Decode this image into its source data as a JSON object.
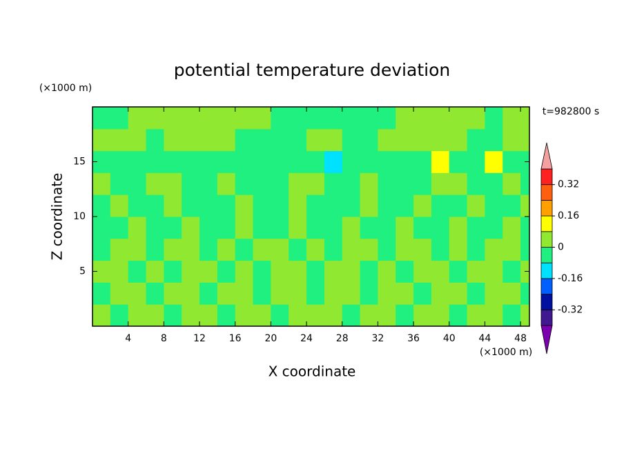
{
  "chart_data": {
    "type": "contour",
    "title": "potential temperature deviation",
    "x_label": "X coordinate",
    "y_label": "Z coordinate",
    "x_unit": "(×1000 m)",
    "y_unit": "(×1000 m)",
    "time_label": "t=982800 s",
    "xlim": [
      0,
      49
    ],
    "ylim": [
      0,
      20
    ],
    "xticks": [
      4,
      8,
      12,
      16,
      20,
      24,
      28,
      32,
      36,
      40,
      44,
      48
    ],
    "yticks": [
      5,
      10,
      15
    ],
    "x": [
      1,
      3,
      5,
      7,
      9,
      11,
      13,
      15,
      17,
      19,
      21,
      23,
      25,
      27,
      29,
      31,
      33,
      35,
      37,
      39,
      41,
      43,
      45,
      47,
      49
    ],
    "y": [
      1,
      3,
      5,
      7,
      9,
      11,
      13,
      15,
      17,
      19
    ],
    "z": [
      [
        0.04,
        -0.04,
        0.04,
        0.04,
        -0.04,
        0.04,
        0.04,
        -0.04,
        0.04,
        0.04,
        -0.04,
        0.04,
        0.04,
        0.04,
        -0.04,
        0.04,
        0.04,
        -0.04,
        0.04,
        0.04,
        -0.04,
        0.04,
        0.04,
        -0.04,
        0.04
      ],
      [
        -0.04,
        0.04,
        0.04,
        -0.04,
        0.04,
        0.04,
        -0.04,
        0.04,
        0.04,
        -0.04,
        0.04,
        0.04,
        -0.04,
        0.04,
        0.04,
        -0.04,
        0.04,
        0.04,
        -0.04,
        0.04,
        0.04,
        -0.04,
        0.04,
        0.04,
        -0.04
      ],
      [
        0.04,
        0.04,
        -0.04,
        0.04,
        -0.04,
        0.04,
        0.04,
        -0.04,
        0.04,
        -0.04,
        0.04,
        0.04,
        -0.04,
        0.04,
        0.04,
        -0.04,
        0.04,
        -0.04,
        0.04,
        0.04,
        -0.04,
        0.04,
        0.04,
        -0.04,
        0.04
      ],
      [
        -0.04,
        0.04,
        0.04,
        -0.04,
        0.04,
        0.04,
        -0.04,
        0.04,
        -0.04,
        0.04,
        0.04,
        -0.04,
        0.04,
        -0.04,
        0.04,
        0.04,
        -0.04,
        0.04,
        0.04,
        -0.04,
        0.04,
        -0.04,
        0.04,
        0.04,
        -0.04
      ],
      [
        -0.04,
        -0.04,
        0.04,
        -0.04,
        -0.04,
        0.04,
        -0.04,
        -0.04,
        0.04,
        -0.04,
        -0.04,
        0.04,
        -0.04,
        -0.04,
        0.04,
        -0.04,
        -0.04,
        0.04,
        -0.04,
        -0.04,
        0.04,
        -0.04,
        -0.04,
        0.04,
        -0.04
      ],
      [
        -0.04,
        0.04,
        -0.04,
        -0.04,
        0.04,
        -0.04,
        -0.04,
        -0.04,
        0.04,
        -0.04,
        -0.04,
        0.04,
        -0.04,
        -0.04,
        -0.04,
        0.04,
        -0.04,
        -0.04,
        0.04,
        -0.04,
        -0.04,
        0.04,
        -0.04,
        -0.04,
        0.04
      ],
      [
        0.04,
        -0.04,
        -0.04,
        0.04,
        0.04,
        -0.04,
        -0.04,
        0.04,
        -0.04,
        -0.04,
        -0.04,
        0.04,
        0.04,
        -0.04,
        -0.04,
        0.04,
        -0.04,
        -0.04,
        -0.04,
        0.04,
        0.04,
        -0.04,
        -0.04,
        0.04,
        -0.04
      ],
      [
        -0.04,
        -0.04,
        -0.04,
        -0.04,
        -0.04,
        -0.04,
        -0.04,
        -0.04,
        -0.04,
        -0.04,
        -0.04,
        -0.04,
        -0.04,
        -0.1,
        -0.04,
        -0.04,
        -0.04,
        -0.04,
        -0.04,
        0.1,
        -0.04,
        -0.04,
        0.1,
        -0.04,
        -0.04
      ],
      [
        0.04,
        0.04,
        0.04,
        -0.04,
        0.04,
        0.04,
        0.04,
        0.04,
        -0.04,
        -0.04,
        -0.04,
        -0.04,
        0.04,
        0.04,
        -0.04,
        -0.04,
        0.04,
        0.04,
        0.04,
        0.04,
        0.04,
        -0.04,
        -0.04,
        0.04,
        0.04
      ],
      [
        -0.04,
        -0.04,
        0.04,
        0.04,
        0.04,
        0.04,
        0.04,
        0.04,
        0.04,
        0.04,
        -0.04,
        -0.04,
        -0.04,
        -0.04,
        -0.04,
        -0.04,
        -0.04,
        0.04,
        0.04,
        0.04,
        0.04,
        0.04,
        -0.04,
        0.04,
        0.04
      ]
    ],
    "levels": [
      -0.4,
      -0.32,
      -0.24,
      -0.16,
      -0.08,
      0,
      0.08,
      0.16,
      0.24,
      0.32,
      0.4
    ],
    "colors": [
      "#401890",
      "#0010a0",
      "#0060ff",
      "#00e0ff",
      "#20f080",
      "#90e830",
      "#ffff00",
      "#ffa000",
      "#ff6010",
      "#ff2020"
    ],
    "extend_colors": [
      "#7a00b0",
      "#f4a0a0"
    ],
    "colorbar_ticks": [
      0.32,
      0.16,
      0,
      -0.16,
      -0.32
    ]
  }
}
